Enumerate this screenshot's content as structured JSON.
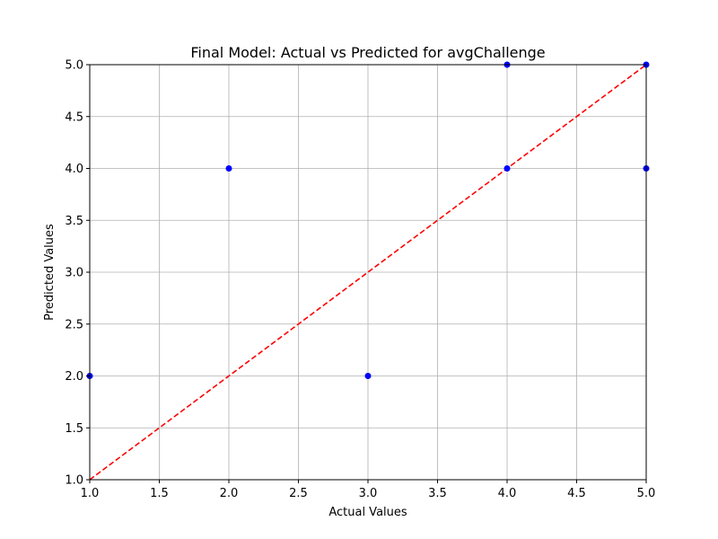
{
  "chart_data": {
    "type": "scatter",
    "title": "Final Model: Actual vs Predicted for avgChallenge",
    "xlabel": "Actual Values",
    "ylabel": "Predicted Values",
    "xlim": [
      1.0,
      5.0
    ],
    "ylim": [
      1.0,
      5.0
    ],
    "x_ticks": [
      "1.0",
      "1.5",
      "2.0",
      "2.5",
      "3.0",
      "3.5",
      "4.0",
      "4.5",
      "5.0"
    ],
    "y_ticks": [
      "1.0",
      "1.5",
      "2.0",
      "2.5",
      "3.0",
      "3.5",
      "4.0",
      "4.5",
      "5.0"
    ],
    "grid": true,
    "points": [
      {
        "x": 1.0,
        "y": 2.0
      },
      {
        "x": 2.0,
        "y": 4.0
      },
      {
        "x": 3.0,
        "y": 2.0
      },
      {
        "x": 4.0,
        "y": 4.0
      },
      {
        "x": 4.0,
        "y": 5.0
      },
      {
        "x": 5.0,
        "y": 4.0
      },
      {
        "x": 5.0,
        "y": 5.0
      }
    ],
    "reference_line": {
      "x": [
        1.0,
        5.0
      ],
      "y": [
        1.0,
        5.0
      ],
      "style": "dashed"
    },
    "colors": {
      "points": "#0000ff",
      "reference_line": "#ff0000",
      "grid": "#b0b0b0"
    }
  }
}
